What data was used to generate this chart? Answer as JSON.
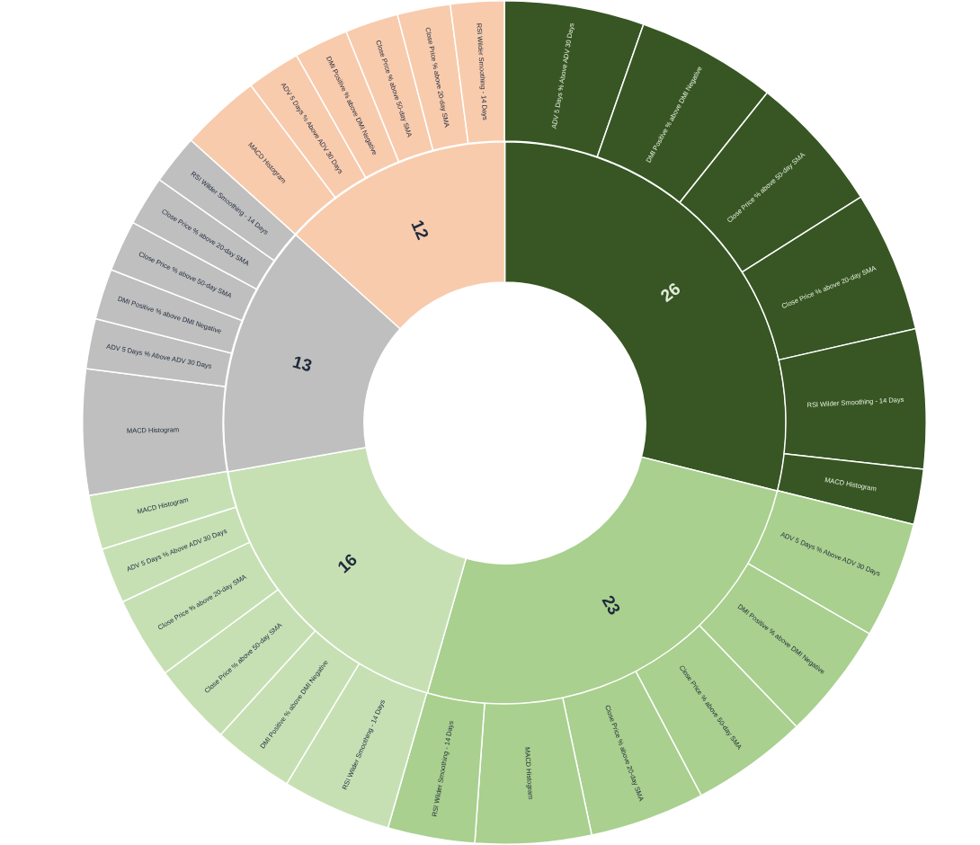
{
  "chart_data": [
    {
      "type": "donut",
      "categories": [
        null,
        null,
        null,
        null,
        null
      ],
      "values": [
        26,
        23,
        16,
        13,
        12
      ],
      "colors": [
        "#375623",
        "#a9d08e",
        "#c6e0b4",
        "#bfbfbf",
        "#f8cbad"
      ],
      "value_labels": [
        "26",
        "23",
        "16",
        "13",
        "12"
      ]
    },
    {
      "type": "donut",
      "categories": [
        "ADV 5 Days % Above ADV 30 Days",
        "DMI Positive % above DMI Negative",
        "Close Price % above 50-day SMA",
        "Close Price % above 20-day SMA",
        "RSI Wilder Smoothing - 14 Days",
        "MACD Histogram",
        "ADV 5 Days % Above ADV 30 Days",
        "DMI Positive % above DMI Negative",
        "Close Price % above 50-day SMA",
        "Close Price % above 20-day SMA",
        "MACD Histogram",
        "RSI Wilder Smoothing - 14 Days",
        "RSI Wilder Smoothing - 14 Days",
        "DMI Positive % above DMI Negative",
        "Close Price % above 50-day SMA",
        "Close Price % above 20-day SMA",
        "ADV 5 Days % Above ADV 30 Days",
        "MACD Histogram",
        "MACD Histogram",
        "ADV 5 Days % Above ADV 30 Days",
        "DMI Positive % above DMI Negative",
        "Close Price % above 50-day SMA",
        "Close Price % above 20-day SMA",
        "RSI Wilder Smoothing - 14 Days",
        "MACD Histogram",
        "ADV 5 Days % Above ADV 30 Days",
        "DMI Positive % above DMI Negative",
        "Close Price % above 50-day SMA",
        "Close Price % above 20-day SMA",
        "RSI Wilder Smoothing - 14 Days"
      ],
      "values": [
        5.35,
        5.36,
        5.31,
        5.41,
        5.34,
        2.12,
        4.46,
        4.47,
        4.45,
        4.41,
        4.44,
        3.33,
        4.18,
        3.11,
        3.14,
        3.13,
        2.13,
        2.09,
        4.81,
        1.92,
        1.94,
        1.96,
        1.9,
        1.91,
        3.07,
        2.06,
        2.08,
        2.04,
        2.03,
        2.05
      ],
      "colors": [
        "#375623",
        "#375623",
        "#375623",
        "#375623",
        "#375623",
        "#375623",
        "#a9d08e",
        "#a9d08e",
        "#a9d08e",
        "#a9d08e",
        "#a9d08e",
        "#a9d08e",
        "#c6e0b4",
        "#c6e0b4",
        "#c6e0b4",
        "#c6e0b4",
        "#c6e0b4",
        "#c6e0b4",
        "#bfbfbf",
        "#bfbfbf",
        "#bfbfbf",
        "#bfbfbf",
        "#bfbfbf",
        "#bfbfbf",
        "#f8cbad",
        "#f8cbad",
        "#f8cbad",
        "#f8cbad",
        "#f8cbad",
        "#f8cbad"
      ]
    }
  ]
}
